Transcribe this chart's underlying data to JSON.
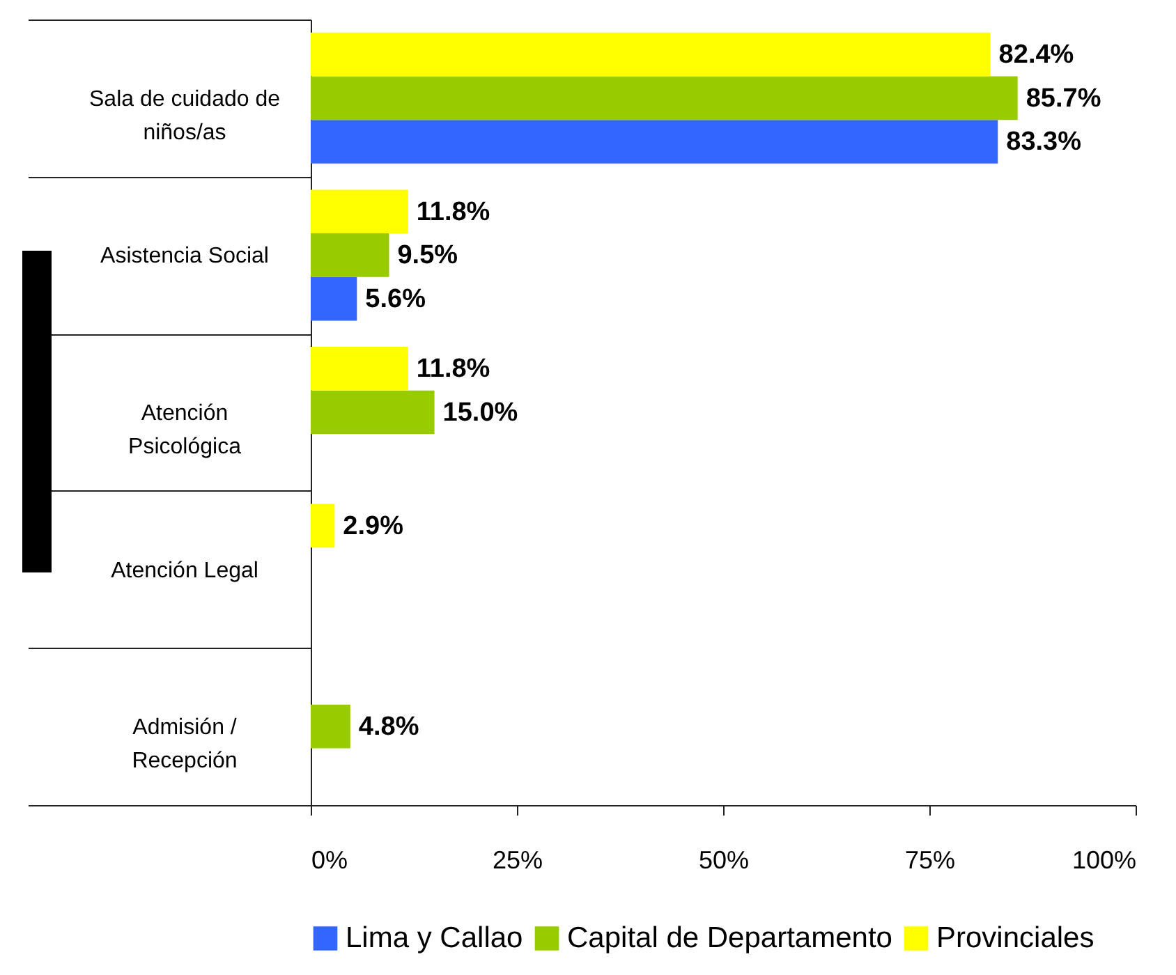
{
  "chart_data": {
    "type": "bar",
    "orientation": "horizontal",
    "categories": [
      "Sala de cuidado de niños/as",
      "Asistencia Social",
      "Atención Psicológica",
      "Atención Legal",
      "Admisión / Recepción"
    ],
    "series": [
      {
        "name": "Lima y Callao",
        "color": "#3366ff",
        "values": [
          83.3,
          5.6,
          null,
          null,
          null
        ],
        "value_labels": [
          "83.3%",
          "5.6%",
          null,
          null,
          null
        ]
      },
      {
        "name": "Capital de Departamento",
        "color": "#99cc00",
        "values": [
          85.7,
          9.5,
          15.0,
          null,
          4.8
        ],
        "value_labels": [
          "85.7%",
          "9.5%",
          "15.0%",
          null,
          "4.8%"
        ]
      },
      {
        "name": "Provinciales",
        "color": "#ffff00",
        "values": [
          82.4,
          11.8,
          11.8,
          2.9,
          null
        ],
        "value_labels": [
          "82.4%",
          "11.8%",
          "11.8%",
          "2.9%",
          null
        ]
      }
    ],
    "xlim": [
      0,
      100
    ],
    "xticks": [
      {
        "value": 0,
        "label": "0%"
      },
      {
        "value": 25,
        "label": "25%"
      },
      {
        "value": 50,
        "label": "50%"
      },
      {
        "value": 75,
        "label": "75%"
      },
      {
        "value": 100,
        "label": "100%"
      }
    ],
    "grid": false,
    "legend": "bottom"
  }
}
